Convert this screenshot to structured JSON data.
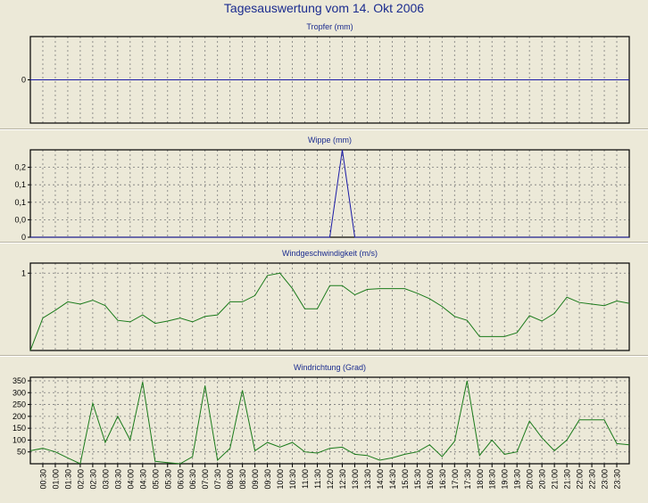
{
  "page": {
    "title": "Tagesauswertung vom 14. Okt 2006"
  },
  "x_tick_labels": [
    "00:30",
    "01:00",
    "01:30",
    "02:00",
    "02:30",
    "03:00",
    "03:30",
    "04:00",
    "04:30",
    "05:00",
    "05:30",
    "06:00",
    "06:30",
    "07:00",
    "07:30",
    "08:00",
    "08:30",
    "09:00",
    "09:30",
    "10:00",
    "10:30",
    "11:00",
    "11:30",
    "12:00",
    "12:30",
    "13:00",
    "13:30",
    "14:00",
    "14:30",
    "15:00",
    "15:30",
    "16:00",
    "16:30",
    "17:00",
    "17:30",
    "18:00",
    "18:30",
    "19:00",
    "19:30",
    "20:00",
    "20:30",
    "21:00",
    "21:30",
    "22:00",
    "22:30",
    "23:00",
    "23:30"
  ],
  "colors": {
    "title": "#1b2c8f",
    "blue_series": "#1a1aa6",
    "green_series": "#1a7a1a",
    "grid": "#7a7a7a"
  },
  "chart_data": [
    {
      "type": "line",
      "title": "Tropfer (mm)",
      "x": [
        "00:00",
        "00:30",
        "01:00",
        "01:30",
        "02:00",
        "02:30",
        "03:00",
        "03:30",
        "04:00",
        "04:30",
        "05:00",
        "05:30",
        "06:00",
        "06:30",
        "07:00",
        "07:30",
        "08:00",
        "08:30",
        "09:00",
        "09:30",
        "10:00",
        "10:30",
        "11:00",
        "11:30",
        "12:00",
        "12:30",
        "13:00",
        "13:30",
        "14:00",
        "14:30",
        "15:00",
        "15:30",
        "16:00",
        "16:30",
        "17:00",
        "17:30",
        "18:00",
        "18:30",
        "19:00",
        "19:30",
        "20:00",
        "20:30",
        "21:00",
        "21:30",
        "22:00",
        "22:30",
        "23:00",
        "23:30",
        "24:00"
      ],
      "values": [
        0,
        0,
        0,
        0,
        0,
        0,
        0,
        0,
        0,
        0,
        0,
        0,
        0,
        0,
        0,
        0,
        0,
        0,
        0,
        0,
        0,
        0,
        0,
        0,
        0,
        0,
        0,
        0,
        0,
        0,
        0,
        0,
        0,
        0,
        0,
        0,
        0,
        0,
        0,
        0,
        0,
        0,
        0,
        0,
        0,
        0,
        0,
        0,
        0
      ],
      "ylim": [
        -1,
        1
      ],
      "yticks": [
        0
      ],
      "ytick_labels": [
        "0"
      ],
      "grid": true
    },
    {
      "type": "line",
      "title": "Wippe (mm)",
      "x": [
        "00:00",
        "00:30",
        "01:00",
        "01:30",
        "02:00",
        "02:30",
        "03:00",
        "03:30",
        "04:00",
        "04:30",
        "05:00",
        "05:30",
        "06:00",
        "06:30",
        "07:00",
        "07:30",
        "08:00",
        "08:30",
        "09:00",
        "09:30",
        "10:00",
        "10:30",
        "11:00",
        "11:30",
        "12:00",
        "12:30",
        "13:00",
        "13:30",
        "14:00",
        "14:30",
        "15:00",
        "15:30",
        "16:00",
        "16:30",
        "17:00",
        "17:30",
        "18:00",
        "18:30",
        "19:00",
        "19:30",
        "20:00",
        "20:30",
        "21:00",
        "21:30",
        "22:00",
        "22:30",
        "23:00",
        "23:30",
        "24:00"
      ],
      "values": [
        0,
        0,
        0,
        0,
        0,
        0,
        0,
        0,
        0,
        0,
        0,
        0,
        0,
        0,
        0,
        0,
        0,
        0,
        0,
        0,
        0,
        0,
        0,
        0,
        0,
        0.25,
        0,
        0,
        0,
        0,
        0,
        0,
        0,
        0,
        0,
        0,
        0,
        0,
        0,
        0,
        0,
        0,
        0,
        0,
        0,
        0,
        0,
        0,
        0
      ],
      "ylim": [
        0,
        0.25
      ],
      "yticks": [
        0,
        0.05,
        0.1,
        0.15,
        0.2
      ],
      "ytick_labels": [
        "0",
        "0,0",
        "0,1",
        "0,1",
        "0,2"
      ],
      "grid": true
    },
    {
      "type": "line",
      "title": "Windgeschwindigkeit (m/s)",
      "x": [
        "00:00",
        "00:30",
        "01:00",
        "01:30",
        "02:00",
        "02:30",
        "03:00",
        "03:30",
        "04:00",
        "04:30",
        "05:00",
        "05:30",
        "06:00",
        "06:30",
        "07:00",
        "07:30",
        "08:00",
        "08:30",
        "09:00",
        "09:30",
        "10:00",
        "10:30",
        "11:00",
        "11:30",
        "12:00",
        "12:30",
        "13:00",
        "13:30",
        "14:00",
        "14:30",
        "15:00",
        "15:30",
        "16:00",
        "16:30",
        "17:00",
        "17:30",
        "18:00",
        "18:30",
        "19:00",
        "19:30",
        "20:00",
        "20:30",
        "21:00",
        "21:30",
        "22:00",
        "22:30",
        "23:00",
        "23:30",
        "24:00"
      ],
      "values": [
        0.0,
        0.42,
        0.52,
        0.63,
        0.6,
        0.65,
        0.58,
        0.39,
        0.37,
        0.46,
        0.35,
        0.38,
        0.42,
        0.37,
        0.44,
        0.46,
        0.63,
        0.63,
        0.71,
        0.97,
        1.0,
        0.8,
        0.54,
        0.54,
        0.84,
        0.84,
        0.72,
        0.79,
        0.8,
        0.8,
        0.8,
        0.74,
        0.67,
        0.57,
        0.44,
        0.39,
        0.18,
        0.18,
        0.18,
        0.23,
        0.45,
        0.38,
        0.48,
        0.69,
        0.62,
        0.6,
        0.58,
        0.64,
        0.61
      ],
      "ylim": [
        0,
        1.13
      ],
      "yticks": [
        1
      ],
      "ytick_labels": [
        "1"
      ],
      "grid": true
    },
    {
      "type": "line",
      "title": "Windrichtung (Grad)",
      "x": [
        "00:00",
        "00:30",
        "01:00",
        "01:30",
        "02:00",
        "02:30",
        "03:00",
        "03:30",
        "04:00",
        "04:30",
        "05:00",
        "05:30",
        "06:00",
        "06:30",
        "07:00",
        "07:30",
        "08:00",
        "08:30",
        "09:00",
        "09:30",
        "10:00",
        "10:30",
        "11:00",
        "11:30",
        "12:00",
        "12:30",
        "13:00",
        "13:30",
        "14:00",
        "14:30",
        "15:00",
        "15:30",
        "16:00",
        "16:30",
        "17:00",
        "17:30",
        "18:00",
        "18:30",
        "19:00",
        "19:30",
        "20:00",
        "20:30",
        "21:00",
        "21:30",
        "22:00",
        "22:30",
        "23:00",
        "23:30",
        "24:00"
      ],
      "values": [
        55,
        65,
        50,
        25,
        0,
        255,
        90,
        200,
        100,
        345,
        10,
        5,
        0,
        30,
        330,
        15,
        65,
        310,
        55,
        90,
        70,
        90,
        50,
        45,
        65,
        70,
        40,
        35,
        15,
        25,
        40,
        50,
        80,
        30,
        95,
        350,
        35,
        100,
        40,
        50,
        180,
        110,
        55,
        100,
        185,
        185,
        185,
        85,
        80
      ],
      "ylim": [
        0,
        365
      ],
      "yticks": [
        50,
        100,
        150,
        200,
        250,
        300,
        350
      ],
      "ytick_labels": [
        "50",
        "100",
        "150",
        "200",
        "250",
        "300",
        "350"
      ],
      "grid": true
    }
  ]
}
